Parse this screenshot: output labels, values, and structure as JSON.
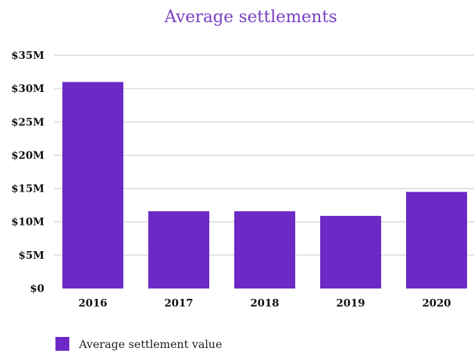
{
  "colors": {
    "bar": "#6c29c6",
    "title": "#7a3fc4",
    "grid": "#c6c6c6",
    "axis_text": "#111111"
  },
  "chart_data": {
    "type": "bar",
    "title": "Average settlements",
    "xlabel": "",
    "ylabel": "",
    "categories": [
      "2016",
      "2017",
      "2018",
      "2019",
      "2020"
    ],
    "series": [
      {
        "name": "Average settlement value",
        "values": [
          31.0,
          11.6,
          11.6,
          10.9,
          14.5
        ]
      }
    ],
    "ylim": [
      0,
      35
    ],
    "y_ticks": [
      0,
      5,
      10,
      15,
      20,
      25,
      30,
      35
    ],
    "y_tick_labels": [
      "$0",
      "$5M",
      "$10M",
      "$15M",
      "$20M",
      "$25M",
      "$30M",
      "$35M"
    ],
    "grid": true,
    "legend_position": "bottom-left"
  }
}
